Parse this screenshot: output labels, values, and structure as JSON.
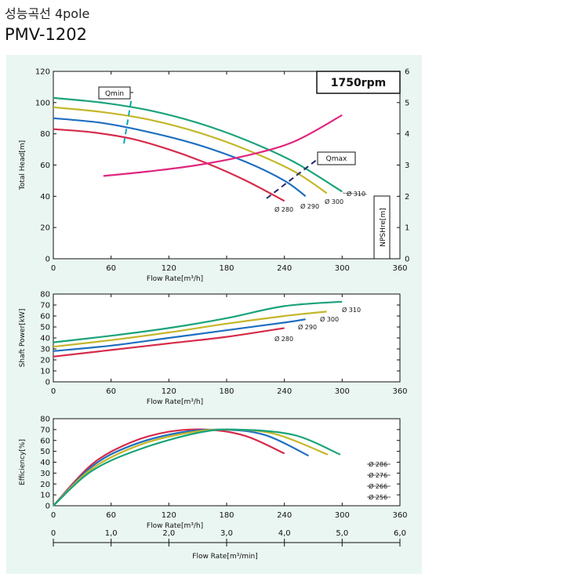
{
  "header": {
    "title_ko": "성능곡선 4pole",
    "model": "PMV-1202"
  },
  "colors": {
    "d280": "#d62b4a",
    "d290": "#1f6fc0",
    "d300": "#c4b62a",
    "d310": "#1aa37a",
    "npsh": "#e0267f",
    "speed": "#0f9a6e",
    "markers": "#1e2a6e"
  },
  "chart_data": [
    {
      "type": "line",
      "speed_label": "1750rpm",
      "xlabel": "Flow Rate[m³/h]",
      "ylabel": "Total Head[m]",
      "y2label": "NPSHre[m]",
      "xlim": [
        0,
        360
      ],
      "ylim": [
        0,
        120
      ],
      "y2lim": [
        0,
        6
      ],
      "xticks": [
        "0",
        "60",
        "120",
        "180",
        "240",
        "300",
        "360"
      ],
      "yticks": [
        "0",
        "20",
        "40",
        "60",
        "80",
        "100",
        "120"
      ],
      "y2ticks": [
        "0",
        "1",
        "2",
        "3",
        "4",
        "5",
        "6"
      ],
      "series": [
        {
          "name": "Ø 280",
          "color": "#d62b4a",
          "x": [
            0,
            40,
            80,
            120,
            160,
            200,
            240
          ],
          "y": [
            83,
            81,
            77,
            70,
            61,
            50,
            37
          ]
        },
        {
          "name": "Ø 290",
          "color": "#1f6fc0",
          "x": [
            0,
            50,
            100,
            150,
            200,
            240,
            262
          ],
          "y": [
            90,
            87,
            81,
            73,
            62,
            50,
            40
          ]
        },
        {
          "name": "Ø 300",
          "color": "#c4b62a",
          "x": [
            0,
            50,
            100,
            150,
            200,
            250,
            284
          ],
          "y": [
            97,
            94,
            89,
            81,
            70,
            56,
            42
          ]
        },
        {
          "name": "Ø 310",
          "color": "#1aa37a",
          "x": [
            0,
            50,
            100,
            150,
            200,
            250,
            300
          ],
          "y": [
            103,
            100,
            95,
            87,
            76,
            62,
            43
          ]
        }
      ],
      "npsh": {
        "color": "#e0267f",
        "x": [
          52,
          100,
          150,
          200,
          250,
          300
        ],
        "y": [
          2.65,
          2.8,
          3.0,
          3.3,
          3.75,
          4.6
        ]
      },
      "annotations": [
        {
          "text": "Qmin",
          "x": 80,
          "y": 93
        },
        {
          "text": "Qmax",
          "x": 240,
          "y": 53
        }
      ]
    },
    {
      "type": "line",
      "xlabel": "Flow Rate[m³/h]",
      "ylabel": "Shaft Power[kW]",
      "xlim": [
        0,
        360
      ],
      "ylim": [
        0,
        80
      ],
      "xticks": [
        "0",
        "60",
        "120",
        "180",
        "240",
        "300",
        "360"
      ],
      "yticks": [
        "0",
        "10",
        "20",
        "30",
        "40",
        "50",
        "60",
        "70",
        "80"
      ],
      "series": [
        {
          "name": "Ø 280",
          "color": "#d62b4a",
          "x": [
            0,
            60,
            120,
            180,
            240
          ],
          "y": [
            23,
            29,
            35,
            41,
            49
          ]
        },
        {
          "name": "Ø 290",
          "color": "#1f6fc0",
          "x": [
            0,
            60,
            120,
            180,
            240,
            262
          ],
          "y": [
            28,
            33,
            40,
            47,
            54,
            57
          ]
        },
        {
          "name": "Ø 300",
          "color": "#c4b62a",
          "x": [
            0,
            60,
            120,
            180,
            240,
            284
          ],
          "y": [
            32,
            38,
            45,
            53,
            60,
            64
          ]
        },
        {
          "name": "Ø 310",
          "color": "#1aa37a",
          "x": [
            0,
            60,
            120,
            180,
            240,
            300
          ],
          "y": [
            36,
            42,
            49,
            58,
            69,
            73
          ]
        }
      ]
    },
    {
      "type": "line",
      "xlabel": "Flow Rate[m³/h]",
      "ylabel": "Efficiency[%]",
      "x2label": "Flow Rate[m³/min]",
      "xlim": [
        0,
        360
      ],
      "ylim": [
        0,
        80
      ],
      "xticks": [
        "0",
        "60",
        "120",
        "180",
        "240",
        "300",
        "360"
      ],
      "yticks": [
        "0",
        "10",
        "20",
        "30",
        "40",
        "50",
        "60",
        "70",
        "80"
      ],
      "x2ticks": [
        "0",
        "1,0",
        "2,0",
        "3,0",
        "4,0",
        "5,0",
        "6,0"
      ],
      "series": [
        {
          "name": "Ø 280",
          "color": "#d62b4a",
          "x": [
            0,
            40,
            80,
            120,
            160,
            200,
            240
          ],
          "y": [
            0,
            38,
            58,
            68,
            70,
            64,
            48
          ]
        },
        {
          "name": "Ø 290",
          "color": "#1f6fc0",
          "x": [
            0,
            40,
            80,
            130,
            175,
            220,
            265
          ],
          "y": [
            0,
            36,
            55,
            67,
            70,
            65,
            46
          ]
        },
        {
          "name": "Ø 300",
          "color": "#c4b62a",
          "x": [
            0,
            40,
            90,
            140,
            180,
            230,
            285
          ],
          "y": [
            0,
            34,
            56,
            67,
            70,
            66,
            47
          ]
        },
        {
          "name": "Ø 310",
          "color": "#1aa37a",
          "x": [
            0,
            40,
            90,
            150,
            190,
            250,
            298
          ],
          "y": [
            0,
            32,
            52,
            67,
            70,
            65,
            47
          ]
        }
      ],
      "side_labels": [
        "Ø 286",
        "Ø 276",
        "Ø 266",
        "Ø 256"
      ]
    }
  ]
}
